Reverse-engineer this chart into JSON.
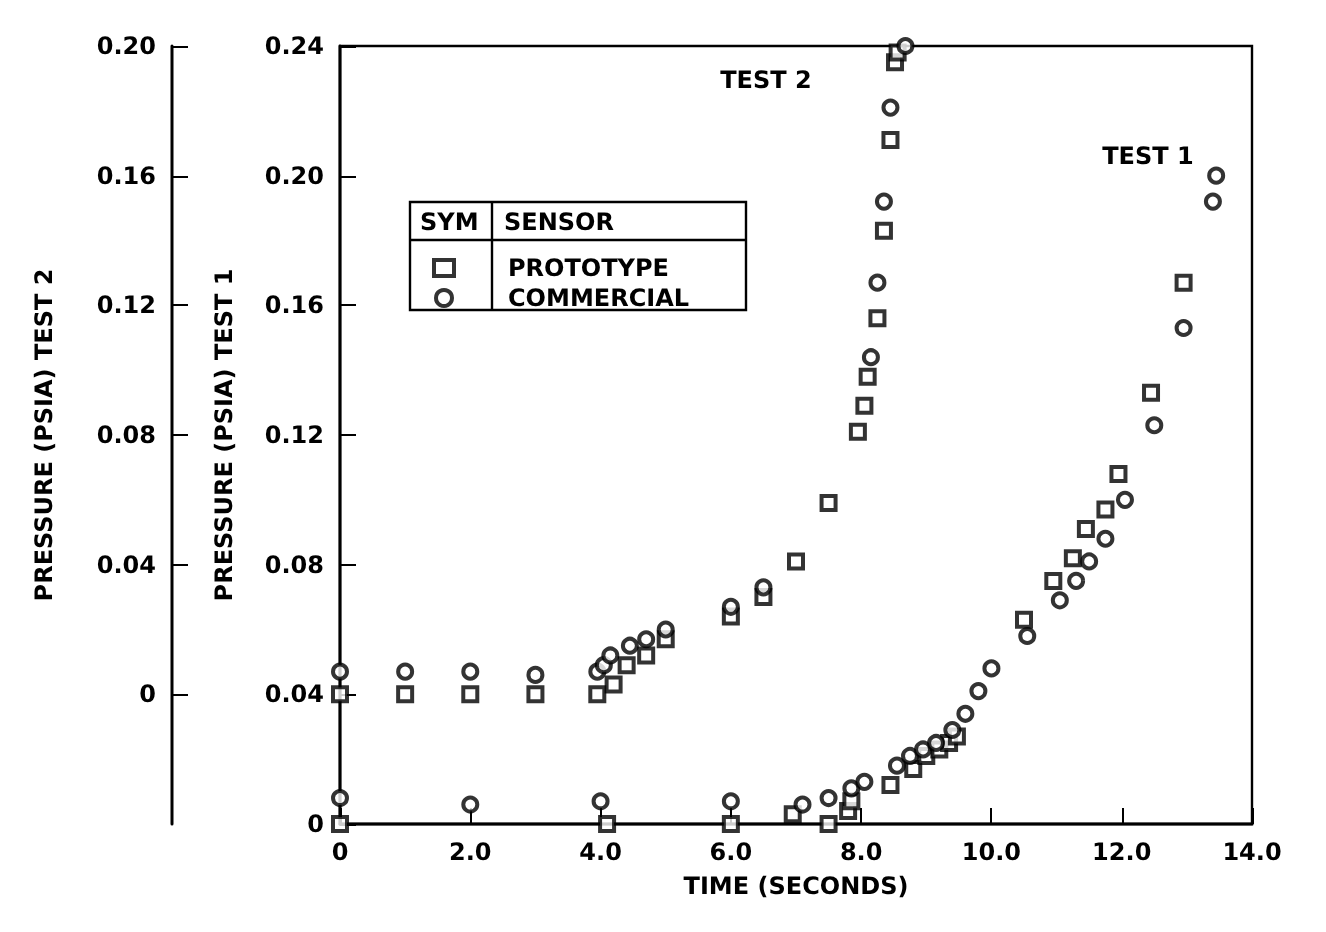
{
  "chart_data": {
    "type": "scatter",
    "xlabel": "TIME (SECONDS)",
    "ylabel": "PRESSURE (PSIA) TEST 1",
    "y2label": "PRESSURE (PSIA) TEST 2",
    "legend_title": "SYM SENSOR",
    "legend": "top left",
    "grid": false,
    "xlim": [
      0,
      14
    ],
    "xticks": [
      0,
      {
        "value": 2,
        "label": "2.0"
      },
      {
        "value": 4,
        "label": "4.0"
      },
      {
        "value": 6,
        "label": "6.0"
      },
      {
        "value": 8,
        "label": "8.0"
      },
      {
        "value": 10,
        "label": "10.0"
      },
      {
        "value": 12,
        "label": "12.0"
      },
      {
        "value": 14,
        "label": "14.0"
      }
    ],
    "ylim": [
      0,
      0.24
    ],
    "yticks": [
      0,
      0.04,
      0.08,
      0.12,
      0.16,
      {
        "value": 0.2,
        "label": "0.20"
      },
      0.24
    ],
    "y2lim": [
      -0.04,
      0.2
    ],
    "y2ticks": [
      0,
      0.04,
      0.08,
      0.12,
      0.16,
      {
        "value": 0.2,
        "label": "0.20"
      }
    ],
    "annotations": [
      "TEST 2",
      "TEST 1"
    ],
    "series": [
      {
        "name": "PROTOTYPE",
        "color": "#000000",
        "marker": "square",
        "x": [
          0,
          4.1,
          6,
          6.95,
          7.5,
          7.8,
          7.85,
          8.45,
          8.8,
          9,
          9.2,
          9.35,
          9.47,
          10.5,
          10.95,
          11.25,
          11.45,
          11.75,
          11.95,
          12.45,
          12.95
        ],
        "values": [
          0,
          0,
          0,
          0.003,
          0,
          0.004,
          0.007,
          0.012,
          0.017,
          0.021,
          0.023,
          0.025,
          0.027,
          0.063,
          0.075,
          0.082,
          0.091,
          0.097,
          0.108,
          0.133,
          0.167
        ]
      },
      {
        "name": "COMMERCIAL",
        "color": "#000000",
        "marker": "circle",
        "x": [
          0,
          2,
          4,
          6,
          7.1,
          7.5,
          7.85,
          8.05,
          8.55,
          8.75,
          8.95,
          9.15,
          9.4,
          9.6,
          9.8,
          10,
          10.55,
          11.05,
          11.3,
          11.5,
          11.75,
          12.05,
          12.5,
          12.95,
          13.4,
          13.45
        ],
        "values": [
          0.008,
          0.006,
          0.007,
          0.007,
          0.006,
          0.008,
          0.011,
          0.013,
          0.018,
          0.021,
          0.023,
          0.025,
          0.029,
          0.034,
          0.041,
          0.048,
          0.058,
          0.069,
          0.075,
          0.081,
          0.088,
          0.1,
          0.123,
          0.153,
          0.192,
          0.2
        ]
      },
      {
        "color": "#000000",
        "marker": "square",
        "axis": "y2",
        "x": [
          0,
          1,
          2,
          3,
          3.95,
          4.2,
          4.4,
          4.7,
          5,
          6,
          6.5,
          7,
          7.5,
          7.95,
          8.05,
          8.1,
          8.25,
          8.35,
          8.45,
          8.52,
          8.56
        ],
        "values": [
          0,
          0,
          0,
          0,
          0,
          0.003,
          0.009,
          0.012,
          0.017,
          0.024,
          0.03,
          0.041,
          0.059,
          0.081,
          0.089,
          0.098,
          0.116,
          0.143,
          0.171,
          0.195,
          0.198
        ]
      },
      {
        "color": "#000000",
        "marker": "circle",
        "axis": "y2",
        "x": [
          0,
          1,
          2,
          3,
          3.95,
          4.05,
          4.15,
          4.45,
          4.7,
          5,
          6,
          6.5,
          8.15,
          8.25,
          8.35,
          8.45,
          8.68
        ],
        "values": [
          0.007,
          0.007,
          0.007,
          0.006,
          0.007,
          0.009,
          0.012,
          0.015,
          0.017,
          0.02,
          0.027,
          0.033,
          0.104,
          0.127,
          0.152,
          0.181,
          0.2
        ]
      }
    ]
  }
}
